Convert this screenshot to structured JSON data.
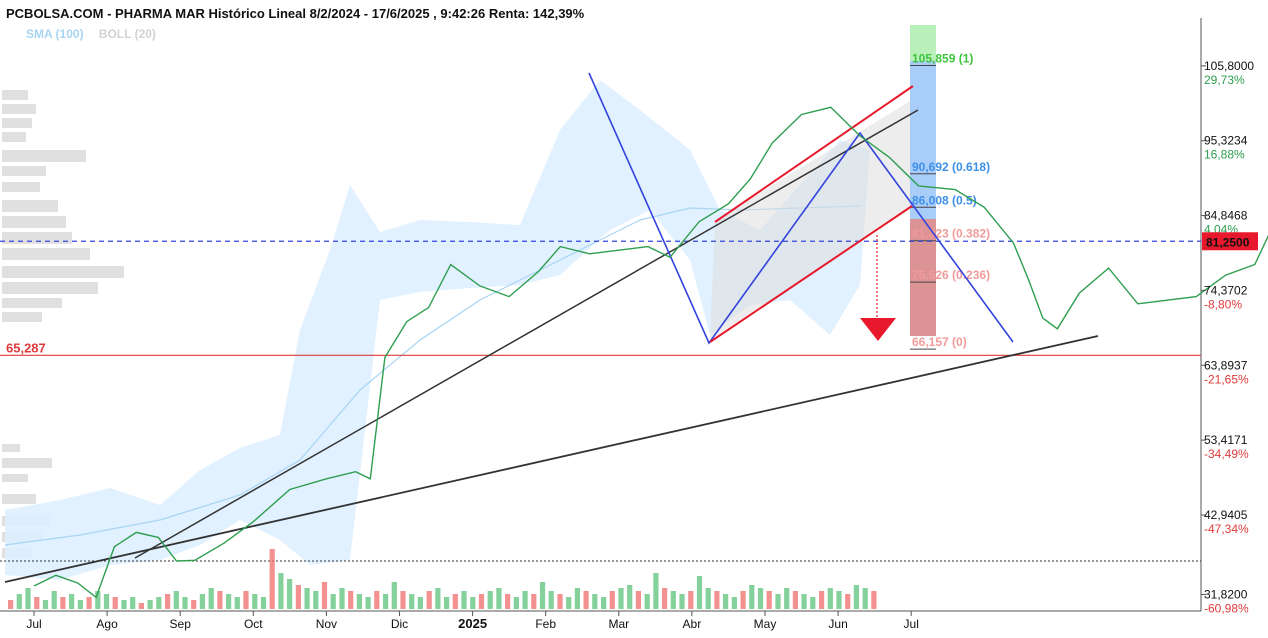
{
  "header": {
    "title": "PCBOLSA.COM - PHARMA MAR Histórico Lineal 8/2/2024 - 17/6/2025 , 9:42:26 Renta: 142,39%"
  },
  "legend": [
    {
      "label": "SMA (100)",
      "color": "#a8d4f2"
    },
    {
      "label": "BOLL (20)",
      "color": "#d2d2d2"
    }
  ],
  "chart_data": {
    "type": "line",
    "y_scale": "linear",
    "ylim": [
      29.5,
      112.5
    ],
    "grid": false,
    "x_axis": {
      "labels": [
        "Jul",
        "Ago",
        "Sep",
        "Oct",
        "Nov",
        "Dic",
        "2025",
        "Feb",
        "Mar",
        "Abr",
        "May",
        "Jun",
        "Jul"
      ]
    },
    "y_axis": {
      "ticks": [
        {
          "value": 105.8,
          "label": "105,8000",
          "pct": "29,73%",
          "pct_color": "#2e9e4f"
        },
        {
          "value": 95.3234,
          "label": "95,3234",
          "pct": "16,88%",
          "pct_color": "#2e9e4f"
        },
        {
          "value": 84.8468,
          "label": "84,8468",
          "pct": "4,04%",
          "pct_color": "#2e9e4f"
        },
        {
          "value": 74.3702,
          "label": "74,3702",
          "pct": "-8,80%",
          "pct_color": "#e03b3b"
        },
        {
          "value": 63.8937,
          "label": "63,8937",
          "pct": "-21,65%",
          "pct_color": "#e03b3b"
        },
        {
          "value": 53.4171,
          "label": "53,4171",
          "pct": "-34,49%",
          "pct_color": "#e03b3b"
        },
        {
          "value": 42.9405,
          "label": "42,9405",
          "pct": "-47,34%",
          "pct_color": "#e03b3b"
        },
        {
          "value": 31.82,
          "label": "31,8200",
          "pct": "-60,98%",
          "pct_color": "#e03b3b"
        }
      ]
    },
    "current_price": {
      "value": 81.25,
      "label": "81,2500",
      "color": "#e8192c"
    },
    "support": {
      "value": 65.287,
      "label": "65,287",
      "color": "#e03b3b"
    },
    "fibonacci": [
      {
        "value": 105.859,
        "label": "105,859",
        "ratio": "(1)",
        "color": "#3cc43c"
      },
      {
        "value": 90.692,
        "label": "90,692",
        "ratio": "(0.618)",
        "color": "#3d8fe8"
      },
      {
        "value": 86.008,
        "label": "86,008",
        "ratio": "(0.5)",
        "color": "#3d8fe8"
      },
      {
        "value": 81.323,
        "label": "81,323",
        "ratio": "(0.382)",
        "color": "#f29a9a"
      },
      {
        "value": 75.526,
        "label": "75,526",
        "ratio": "(0.236)",
        "color": "#f29a9a"
      },
      {
        "value": 66.157,
        "label": "66,157",
        "ratio": "(0)",
        "color": "#f29a9a"
      }
    ],
    "price_path": [
      [
        0,
        33.0
      ],
      [
        0.3,
        34.5
      ],
      [
        0.6,
        33.4
      ],
      [
        0.85,
        31.4
      ],
      [
        1.1,
        38.5
      ],
      [
        1.4,
        40.5
      ],
      [
        1.7,
        39.8
      ],
      [
        1.95,
        36.5
      ],
      [
        2.2,
        36.6
      ],
      [
        2.6,
        39.0
      ],
      [
        3.0,
        42.0
      ],
      [
        3.5,
        46.5
      ],
      [
        4.0,
        48.0
      ],
      [
        4.4,
        49.0
      ],
      [
        4.6,
        48.0
      ],
      [
        4.8,
        65.0
      ],
      [
        5.1,
        70.0
      ],
      [
        5.4,
        72.0
      ],
      [
        5.7,
        78.0
      ],
      [
        6.1,
        75.0
      ],
      [
        6.5,
        73.5
      ],
      [
        6.9,
        77.0
      ],
      [
        7.2,
        80.5
      ],
      [
        7.6,
        79.5
      ],
      [
        8.0,
        80.0
      ],
      [
        8.4,
        80.5
      ],
      [
        8.7,
        79.0
      ],
      [
        9.1,
        84.0
      ],
      [
        9.5,
        86.5
      ],
      [
        9.8,
        90.0
      ],
      [
        10.1,
        95.0
      ],
      [
        10.5,
        99.0
      ],
      [
        10.9,
        100.0
      ],
      [
        11.3,
        96.0
      ],
      [
        11.7,
        93.0
      ],
      [
        12.1,
        89.0
      ],
      [
        12.6,
        88.5
      ],
      [
        13.0,
        86.0
      ],
      [
        13.4,
        81.0
      ],
      [
        13.6,
        76.0
      ],
      [
        13.8,
        70.5
      ],
      [
        14.0,
        69.0
      ],
      [
        14.3,
        74.0
      ],
      [
        14.7,
        77.5
      ],
      [
        15.1,
        72.5
      ],
      [
        15.5,
        73.0
      ],
      [
        15.9,
        73.5
      ],
      [
        16.3,
        76.5
      ],
      [
        16.7,
        78.0
      ],
      [
        17.0,
        84.5
      ],
      [
        17.3,
        85.5
      ],
      [
        17.7,
        84.0
      ],
      [
        18.0,
        82.5
      ],
      [
        18.3,
        87.5
      ],
      [
        18.6,
        83.5
      ],
      [
        18.9,
        82.0
      ],
      [
        19.1,
        81.25
      ]
    ],
    "volume": [
      0.15,
      0.25,
      0.35,
      0.2,
      0.15,
      0.3,
      0.2,
      0.25,
      0.15,
      0.2,
      0.3,
      0.25,
      0.2,
      0.15,
      0.2,
      0.1,
      0.15,
      0.2,
      0.25,
      0.3,
      0.2,
      0.15,
      0.25,
      0.35,
      0.3,
      0.25,
      0.2,
      0.3,
      0.25,
      0.2,
      1.0,
      0.6,
      0.5,
      0.4,
      0.35,
      0.3,
      0.45,
      0.25,
      0.35,
      0.3,
      0.25,
      0.2,
      0.3,
      0.25,
      0.45,
      0.3,
      0.25,
      0.2,
      0.3,
      0.35,
      0.2,
      0.25,
      0.3,
      0.2,
      0.25,
      0.3,
      0.35,
      0.25,
      0.2,
      0.3,
      0.25,
      0.45,
      0.3,
      0.25,
      0.2,
      0.35,
      0.3,
      0.25,
      0.2,
      0.3,
      0.35,
      0.4,
      0.3,
      0.25,
      0.6,
      0.35,
      0.3,
      0.25,
      0.3,
      0.55,
      0.35,
      0.3,
      0.25,
      0.2,
      0.3,
      0.4,
      0.35,
      0.3,
      0.25,
      0.35,
      0.3,
      0.25,
      0.2,
      0.3,
      0.35,
      0.3,
      0.25,
      0.4,
      0.35,
      0.3
    ]
  }
}
